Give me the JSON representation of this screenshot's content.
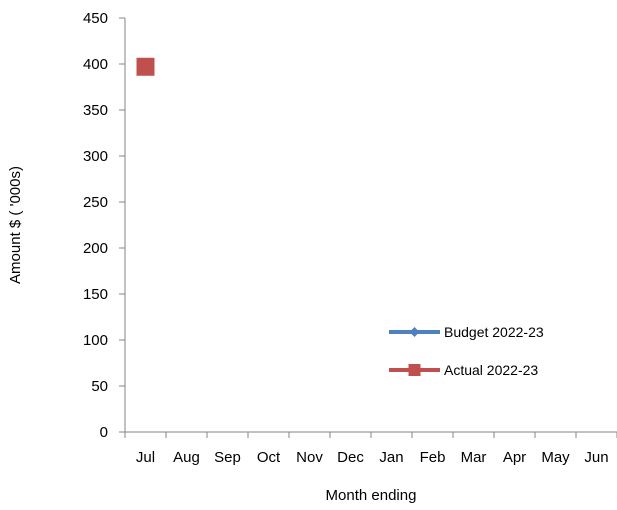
{
  "chart_data": {
    "type": "line",
    "title": "",
    "xlabel": "Month ending",
    "ylabel": "Amount $ ( '000s)",
    "categories": [
      "Jul",
      "Aug",
      "Sep",
      "Oct",
      "Nov",
      "Dec",
      "Jan",
      "Feb",
      "Mar",
      "Apr",
      "May",
      "Jun"
    ],
    "ylim": [
      0,
      450
    ],
    "yticks": [
      0,
      50,
      100,
      150,
      200,
      250,
      300,
      350,
      400,
      450
    ],
    "grid": false,
    "legend_position": "bottom-right",
    "series": [
      {
        "name": "Budget 2022-23",
        "color": "#4f81bd",
        "marker": "diamond",
        "values": [
          null,
          null,
          null,
          null,
          null,
          null,
          null,
          null,
          null,
          null,
          null,
          null
        ]
      },
      {
        "name": "Actual 2022-23",
        "color": "#c0504d",
        "marker": "square",
        "values": [
          397,
          null,
          null,
          null,
          null,
          null,
          null,
          null,
          null,
          null,
          null,
          null
        ]
      }
    ]
  }
}
